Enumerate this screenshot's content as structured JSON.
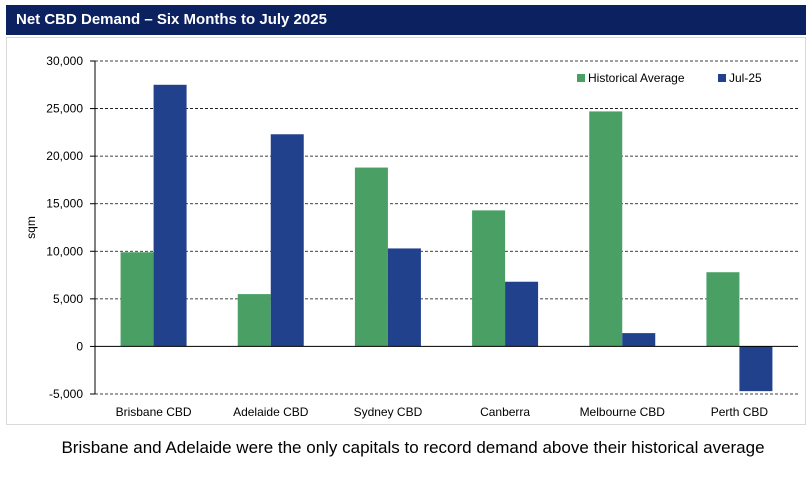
{
  "header": {
    "title": "Net CBD Demand – Six Months to July 2025"
  },
  "caption": "Brisbane and Adelaide were the only capitals to record demand above their historical average",
  "chart_data": {
    "type": "bar",
    "title": "",
    "xlabel": "",
    "ylabel": "sqm",
    "ylim": [
      -5000,
      30000
    ],
    "yticks": [
      -5000,
      0,
      5000,
      10000,
      15000,
      20000,
      25000,
      30000
    ],
    "ytick_labels": [
      "-5,000",
      "0",
      "5,000",
      "10,000",
      "15,000",
      "20,000",
      "25,000",
      "30,000"
    ],
    "grid": "horizontal dashed",
    "legend_position": "top-right",
    "categories": [
      "Brisbane CBD",
      "Adelaide CBD",
      "Sydney CBD",
      "Canberra",
      "Melbourne CBD",
      "Perth CBD"
    ],
    "series": [
      {
        "name": "Historical Average",
        "color": "#4aa064",
        "values": [
          9900,
          5500,
          18800,
          14300,
          24700,
          7800
        ]
      },
      {
        "name": "Jul-25",
        "color": "#22418c",
        "values": [
          27500,
          22300,
          10300,
          6800,
          1400,
          -4700
        ]
      }
    ]
  }
}
